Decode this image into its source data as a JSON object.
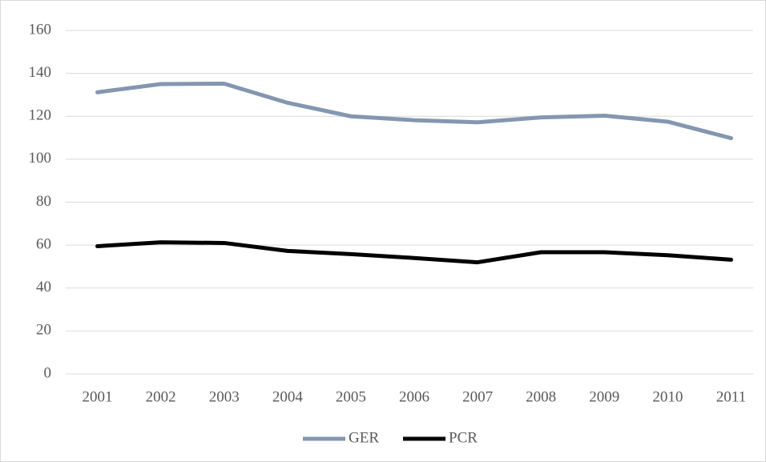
{
  "chart_data": {
    "type": "line",
    "categories": [
      "2001",
      "2002",
      "2003",
      "2004",
      "2005",
      "2006",
      "2007",
      "2008",
      "2009",
      "2010",
      "2011"
    ],
    "series": [
      {
        "name": "GER",
        "color": "#8496b0",
        "values": [
          131.2,
          135,
          135.2,
          126.3,
          120,
          118.2,
          117.2,
          119.5,
          120.3,
          117.5,
          109.8
        ]
      },
      {
        "name": "PCR",
        "color": "#000000",
        "values": [
          59.5,
          61.3,
          61,
          57.3,
          55.8,
          54,
          52,
          56.7,
          56.7,
          55.3,
          53.2
        ]
      }
    ],
    "ylim": [
      0,
      160
    ],
    "yticks": [
      0,
      20,
      40,
      60,
      80,
      100,
      120,
      140,
      160
    ],
    "grid": true,
    "legend": "bottom"
  }
}
